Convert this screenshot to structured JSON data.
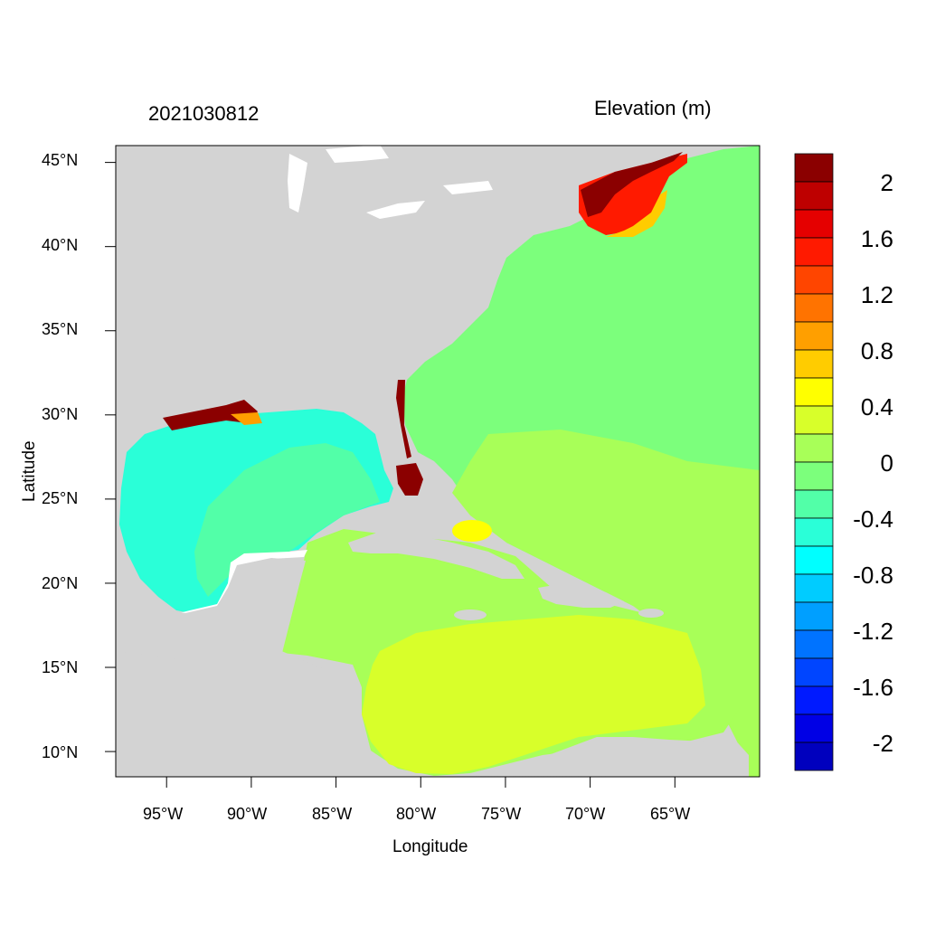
{
  "map": {
    "timestamp": "2021030812",
    "variable_title": "Elevation (m)",
    "x_axis_label": "Longitude",
    "y_axis_label": "Latitude",
    "lat_ticks": [
      "45°N",
      "40°N",
      "35°N",
      "30°N",
      "25°N",
      "20°N",
      "15°N",
      "10°N"
    ],
    "lon_ticks": [
      "95°W",
      "90°W",
      "85°W",
      "80°W",
      "75°W",
      "70°W",
      "65°W"
    ],
    "extent": {
      "lon_min": -98,
      "lon_max": -60,
      "lat_min": 8.5,
      "lat_max": 46
    },
    "land_color": "#d3d3d3"
  },
  "colorbar": {
    "labels": [
      "2",
      "1.6",
      "1.2",
      "0.8",
      "0.4",
      "0",
      "-0.4",
      "-0.8",
      "-1.2",
      "-1.6",
      "-2"
    ],
    "colors_top_to_bottom": [
      "#8b0000",
      "#be0000",
      "#e50000",
      "#ff1a00",
      "#ff4500",
      "#ff7300",
      "#ff9f00",
      "#ffcc00",
      "#ffff00",
      "#d8ff2a",
      "#a8ff58",
      "#7cff7c",
      "#52ffa8",
      "#2affd8",
      "#00ffff",
      "#00ccff",
      "#009fff",
      "#0073ff",
      "#0045ff",
      "#001aff",
      "#0000e5",
      "#0000be"
    ]
  }
}
